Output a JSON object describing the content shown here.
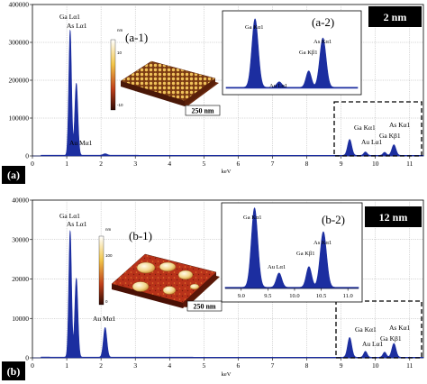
{
  "chart_data": [
    {
      "panel": "(a)",
      "type": "line",
      "thickness_label": "2 nm",
      "xlabel": "keV",
      "ylabel": "",
      "xlim": [
        0,
        11.4
      ],
      "ylim": [
        0,
        400000
      ],
      "xticks": [
        0,
        1,
        2,
        3,
        4,
        5,
        6,
        7,
        8,
        9,
        10,
        11
      ],
      "yticks": [
        0,
        100000,
        200000,
        300000,
        400000
      ],
      "ytick_labels": [
        "0",
        "100000",
        "200000",
        "300000",
        "400000"
      ],
      "grid": true,
      "color": "#1c2ea0",
      "peaks": [
        {
          "label": "Ga Lα1",
          "x": 1.1,
          "y": 330000,
          "w": 0.04
        },
        {
          "label": "As Lα1",
          "x": 1.28,
          "y": 190000,
          "w": 0.045
        },
        {
          "label": "Au Mα1",
          "x": 2.12,
          "y": 4000,
          "w": 0.06
        },
        {
          "label": "Ga Kα1",
          "x": 9.25,
          "y": 42000,
          "w": 0.06
        },
        {
          "label": "Au Lα1",
          "x": 9.71,
          "y": 9000,
          "w": 0.05
        },
        {
          "label": "Ga Kβ1",
          "x": 10.27,
          "y": 8000,
          "w": 0.05
        },
        {
          "label": "As Kα1",
          "x": 10.54,
          "y": 28000,
          "w": 0.06
        }
      ],
      "inset_label": "(a-2)",
      "inset_peaks": [
        {
          "label": "Ga Kα1",
          "x": 9.25,
          "y": 1.0,
          "w": 0.06
        },
        {
          "label": "Au Lα1",
          "x": 9.71,
          "y": 0.08,
          "w": 0.05
        },
        {
          "label": "Ga Kβ1",
          "x": 10.27,
          "y": 0.24,
          "w": 0.05
        },
        {
          "label": "As Kα1",
          "x": 10.54,
          "y": 0.72,
          "w": 0.06
        }
      ],
      "image_label": "(a-1)",
      "colorbar_ticks": [
        "nm",
        "10",
        "-10"
      ],
      "scale_bar": "250 nm"
    },
    {
      "panel": "(b)",
      "type": "line",
      "thickness_label": "12 nm",
      "xlabel": "keV",
      "ylabel": "",
      "xlim": [
        0,
        11.4
      ],
      "ylim": [
        0,
        40000
      ],
      "xticks": [
        0,
        1,
        2,
        3,
        4,
        5,
        6,
        7,
        8,
        9,
        10,
        11
      ],
      "yticks": [
        0,
        10000,
        20000,
        30000,
        40000
      ],
      "ytick_labels": [
        "0",
        "10000",
        "20000",
        "30000",
        "40000"
      ],
      "grid": true,
      "color": "#1c2ea0",
      "peaks": [
        {
          "label": "Ga Lα1",
          "x": 1.1,
          "y": 32000,
          "w": 0.04
        },
        {
          "label": "As Lα1",
          "x": 1.28,
          "y": 20000,
          "w": 0.045
        },
        {
          "label": "Au Mα1",
          "x": 2.12,
          "y": 7500,
          "w": 0.05
        },
        {
          "label": "Ga Kα1",
          "x": 9.25,
          "y": 5000,
          "w": 0.06
        },
        {
          "label": "Au Lα1",
          "x": 9.71,
          "y": 1500,
          "w": 0.05
        },
        {
          "label": "Ga Kβ1",
          "x": 10.27,
          "y": 1300,
          "w": 0.05
        },
        {
          "label": "As Kα1",
          "x": 10.54,
          "y": 3500,
          "w": 0.06
        }
      ],
      "inset_label": "(b-2)",
      "inset_xlim": [
        8.7,
        11.2
      ],
      "inset_xticks": [
        "9.0",
        "9.5",
        "10.0",
        "10.5",
        "11.0"
      ],
      "inset_peaks": [
        {
          "label": "Ga Kα1",
          "x": 9.25,
          "y": 1.0,
          "w": 0.06
        },
        {
          "label": "Au Lα1",
          "x": 9.71,
          "y": 0.18,
          "w": 0.05
        },
        {
          "label": "Ga Kβ1",
          "x": 10.27,
          "y": 0.26,
          "w": 0.05
        },
        {
          "label": "As Kα1",
          "x": 10.54,
          "y": 0.7,
          "w": 0.06
        }
      ],
      "image_label": "(b-1)",
      "colorbar_ticks": [
        "nm",
        "100",
        "0"
      ],
      "scale_bar": "250 nm"
    }
  ]
}
